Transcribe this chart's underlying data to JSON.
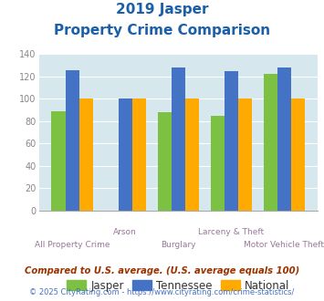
{
  "title_line1": "2019 Jasper",
  "title_line2": "Property Crime Comparison",
  "categories": [
    "All Property Crime",
    "Arson",
    "Burglary",
    "Larceny & Theft",
    "Motor Vehicle Theft"
  ],
  "jasper": [
    89,
    0,
    88,
    85,
    122
  ],
  "tennessee": [
    126,
    100,
    128,
    125,
    128
  ],
  "national": [
    100,
    100,
    100,
    100,
    100
  ],
  "jasper_color": "#7dc142",
  "tennessee_color": "#4472c4",
  "national_color": "#ffaa00",
  "bg_color": "#d6e8ed",
  "title_color": "#1a5fa8",
  "xlabel_color": "#997799",
  "ylabel_color": "#888888",
  "legend_label_color": "#333333",
  "legend_labels": [
    "Jasper",
    "Tennessee",
    "National"
  ],
  "ylim": [
    0,
    140
  ],
  "yticks": [
    0,
    20,
    40,
    60,
    80,
    100,
    120,
    140
  ],
  "footnote1": "Compared to U.S. average. (U.S. average equals 100)",
  "footnote2": "© 2025 CityRating.com - https://www.cityrating.com/crime-statistics/",
  "footnote1_color": "#993300",
  "footnote2_color": "#4472c4"
}
